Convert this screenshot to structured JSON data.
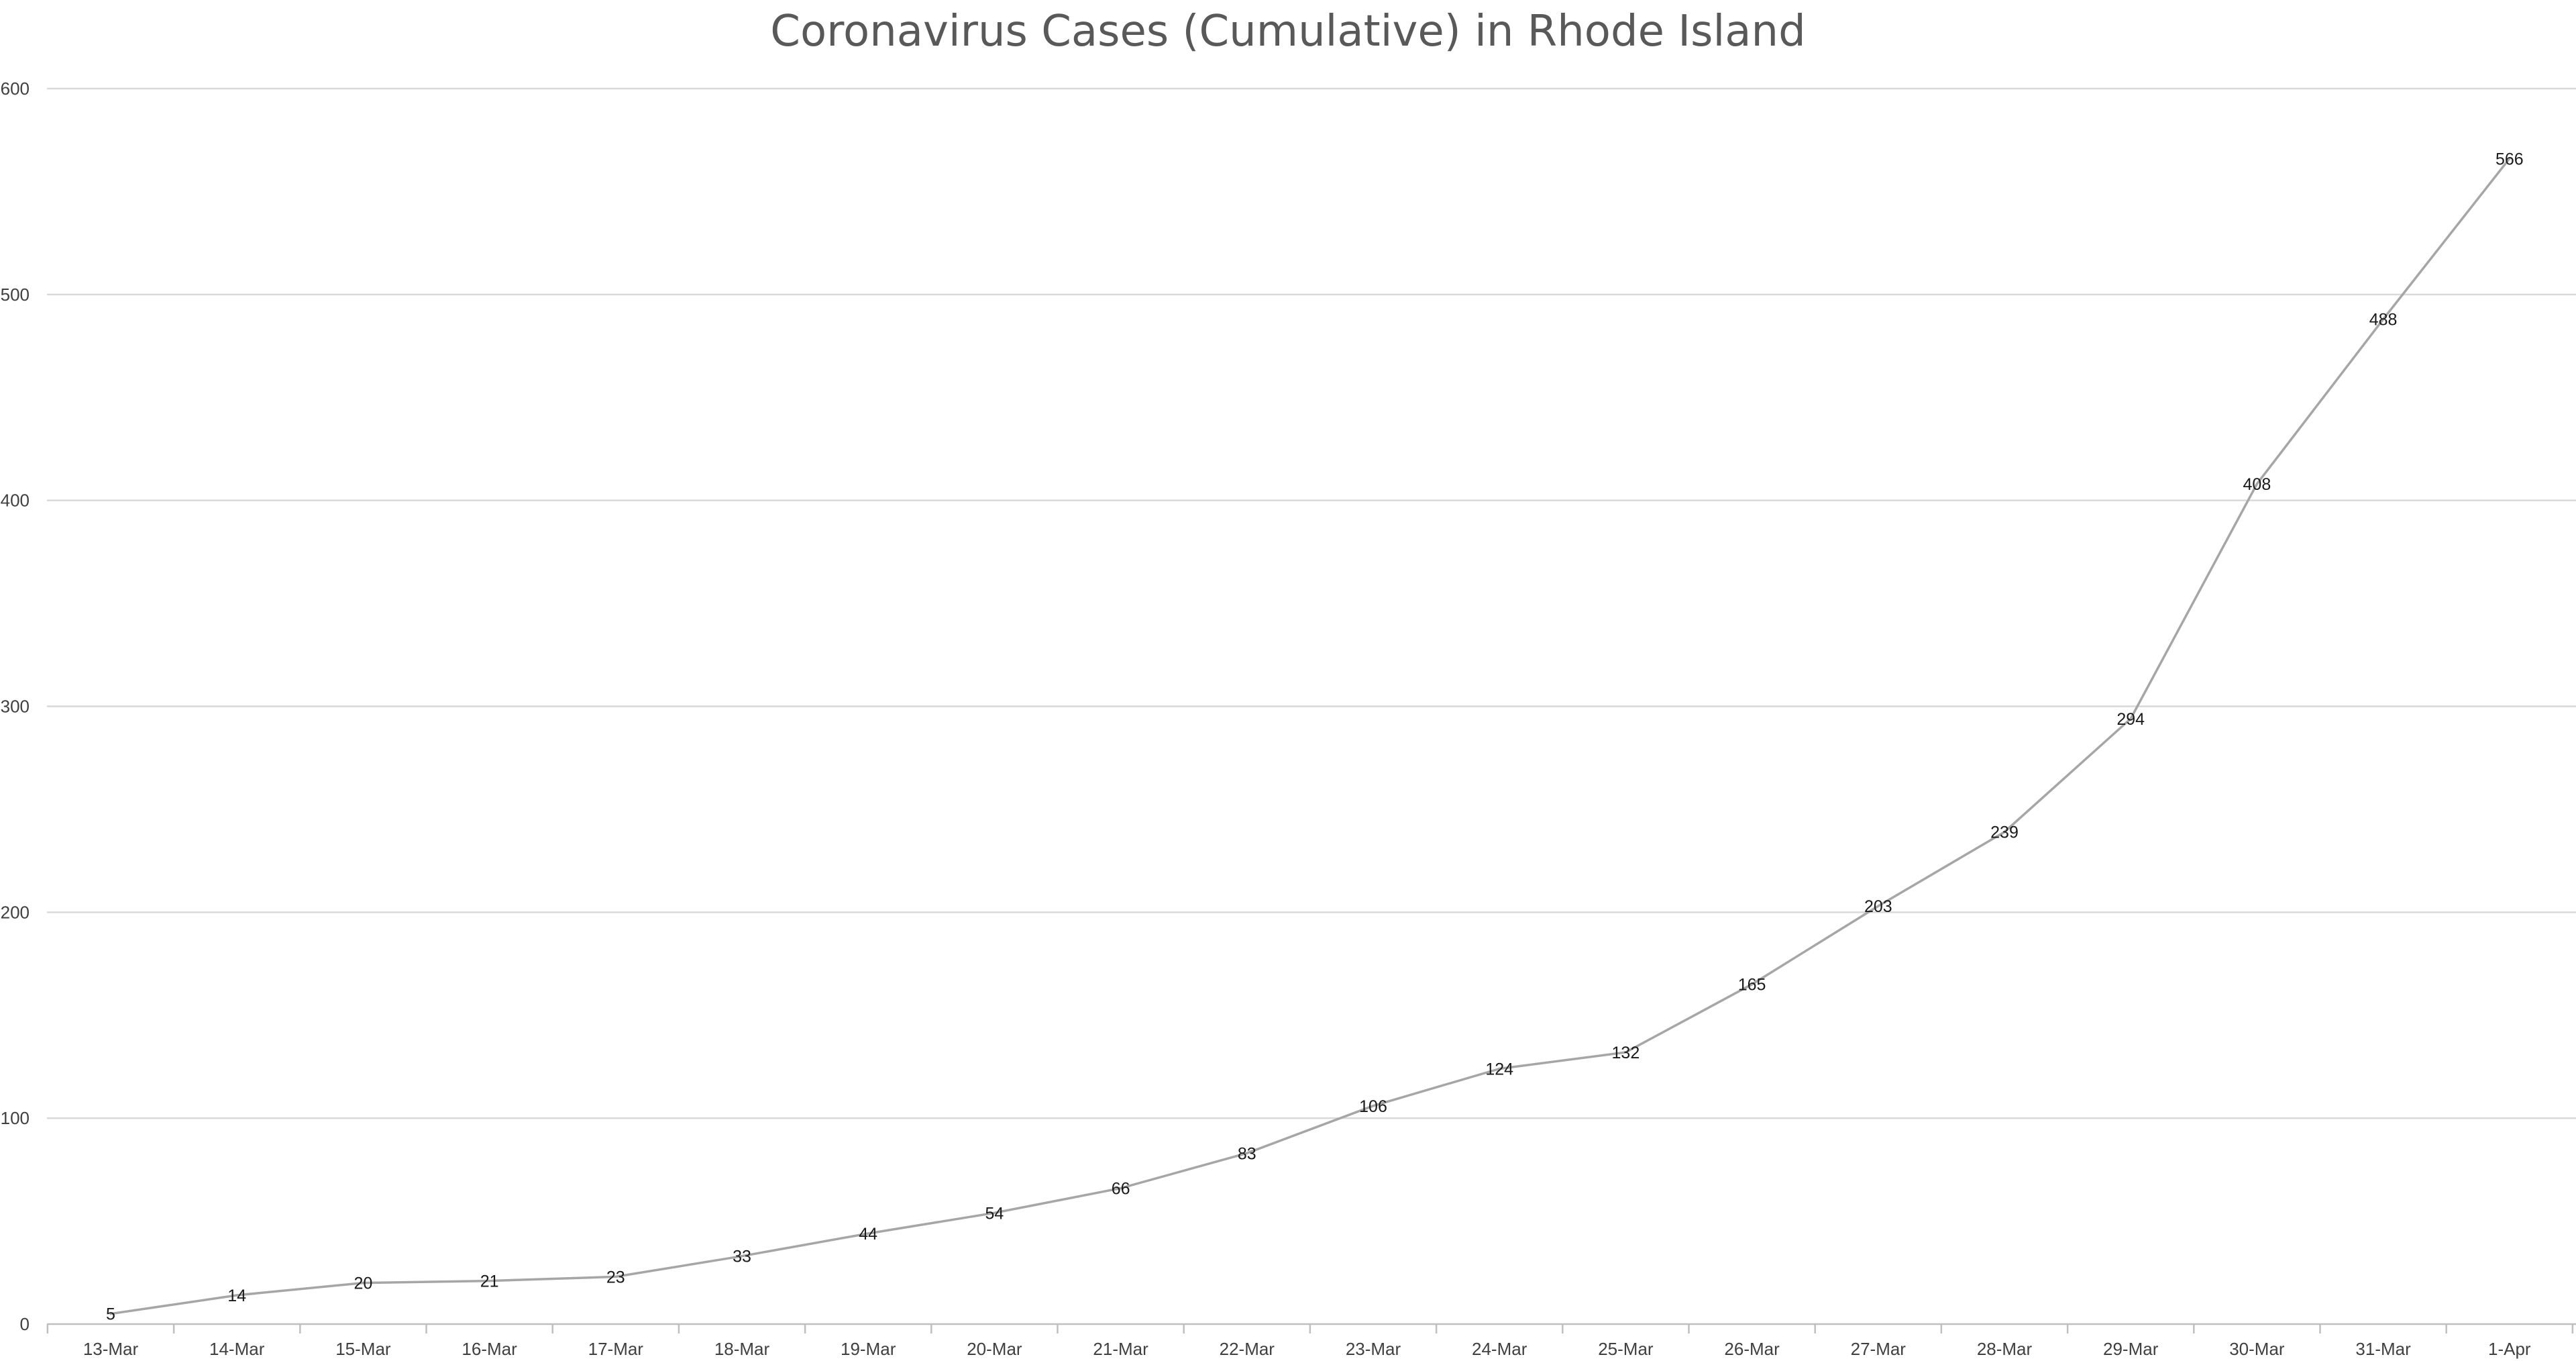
{
  "chart_data": {
    "type": "line",
    "title": "Coronavirus Cases (Cumulative) in Rhode Island",
    "categories": [
      "13-Mar",
      "14-Mar",
      "15-Mar",
      "16-Mar",
      "17-Mar",
      "18-Mar",
      "19-Mar",
      "20-Mar",
      "21-Mar",
      "22-Mar",
      "23-Mar",
      "24-Mar",
      "25-Mar",
      "26-Mar",
      "27-Mar",
      "28-Mar",
      "29-Mar",
      "30-Mar",
      "31-Mar",
      "1-Apr"
    ],
    "series": [
      {
        "values": [
          5,
          14,
          20,
          21,
          23,
          33,
          44,
          54,
          66,
          83,
          106,
          124,
          132,
          165,
          203,
          239,
          294,
          408,
          488,
          566
        ]
      }
    ],
    "ylim": [
      0,
      600
    ],
    "yticks": [
      0,
      100,
      200,
      300,
      400,
      500,
      600
    ],
    "grid": true,
    "legend": "none",
    "data_labels": true,
    "line_color": "#a6a6a6"
  }
}
